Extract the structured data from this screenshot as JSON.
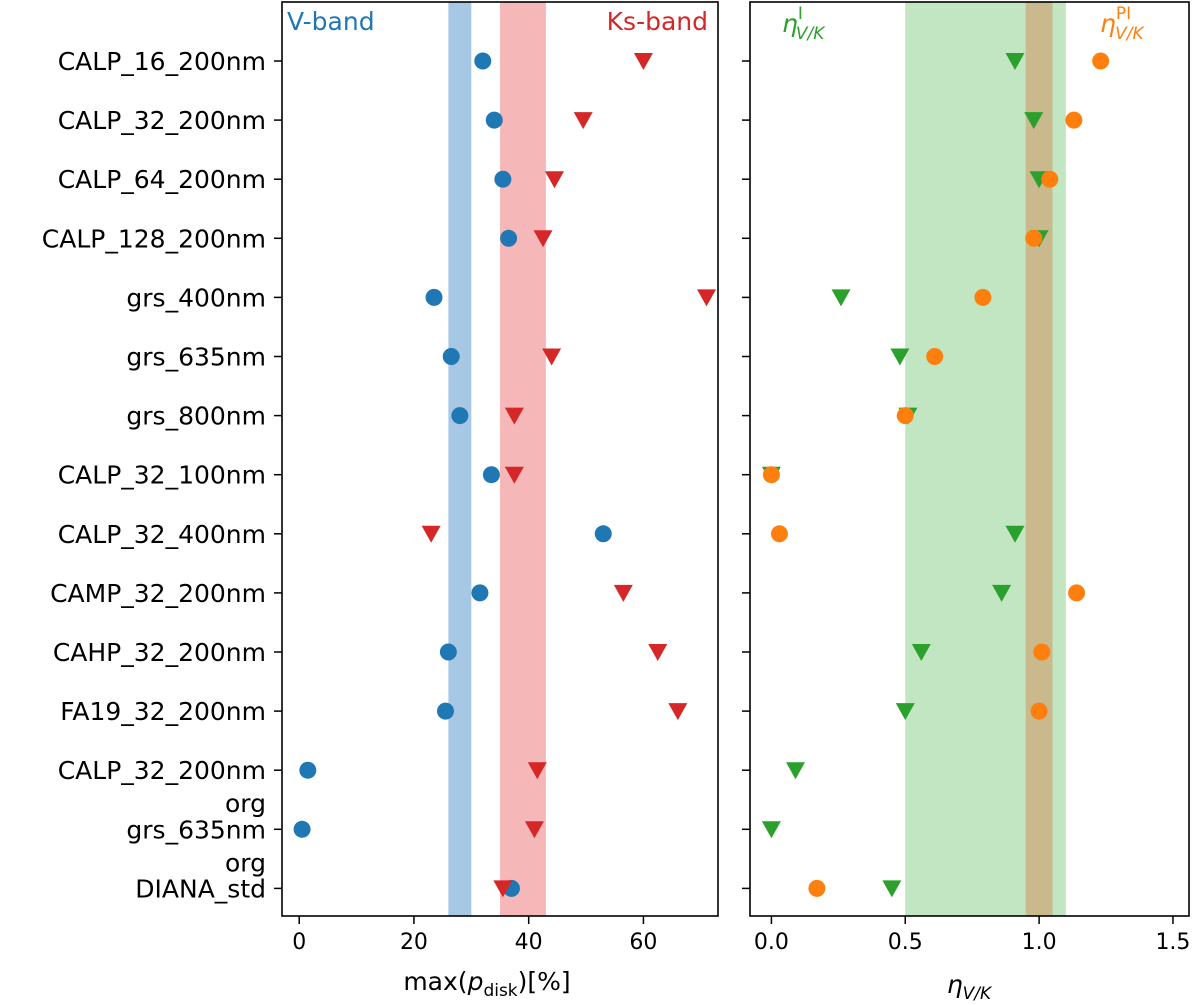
{
  "chart_data": [
    {
      "type": "scatter",
      "orientation": "horizontal-categories",
      "categories": [
        [
          "CALP_16_200nm"
        ],
        [
          "CALP_32_200nm"
        ],
        [
          "CALP_64_200nm"
        ],
        [
          "CALP_128_200nm"
        ],
        [
          "grs_400nm"
        ],
        [
          "grs_635nm"
        ],
        [
          "grs_800nm"
        ],
        [
          "CALP_32_100nm"
        ],
        [
          "CALP_32_400nm"
        ],
        [
          "CAMP_32_200nm"
        ],
        [
          "CAHP_32_200nm"
        ],
        [
          "FA19_32_200nm"
        ],
        [
          "CALP_32_200nm",
          "org"
        ],
        [
          "grs_635nm",
          "org"
        ],
        [
          "DIANA_std"
        ]
      ],
      "xlabel": "max(p_disk)[%]",
      "xlim": [
        -3,
        73
      ],
      "xticks": [
        0,
        20,
        40,
        60
      ],
      "tick_labels": [
        "0",
        "20",
        "40",
        "60"
      ],
      "bands": [
        {
          "label": "V-band",
          "range": [
            26,
            30
          ],
          "color": "#a6c8e4"
        },
        {
          "label": "Ks-band",
          "range": [
            35,
            43
          ],
          "color": "#f5b7b8"
        }
      ],
      "series": [
        {
          "name": "V-band",
          "marker": "circle",
          "color": "#1f77b4",
          "values": [
            32,
            34,
            35.5,
            36.5,
            23.5,
            26.5,
            28,
            33.5,
            53,
            31.5,
            26,
            25.5,
            1.5,
            0.5,
            37
          ]
        },
        {
          "name": "Ks-band",
          "marker": "triangle-down",
          "color": "#d62728",
          "values": [
            60,
            49.5,
            44.5,
            42.5,
            71,
            44,
            37.5,
            37.5,
            23,
            56.5,
            62.5,
            66,
            41.5,
            41,
            35.5
          ]
        }
      ]
    },
    {
      "type": "scatter",
      "orientation": "horizontal-categories",
      "xlabel": "η_V/K",
      "xlim": [
        -0.08,
        1.56
      ],
      "xticks": [
        0.0,
        0.5,
        1.0,
        1.5
      ],
      "tick_labels": [
        "0.0",
        "0.5",
        "1.0",
        "1.5"
      ],
      "bands": [
        {
          "range": [
            0.5,
            1.1
          ],
          "color": "#c1e6c1"
        },
        {
          "range": [
            0.95,
            1.05
          ],
          "color": "#c9b98c"
        }
      ],
      "series": [
        {
          "name_main": "η",
          "name_sup": "I",
          "name_sub": "V/K",
          "marker": "triangle-down",
          "color": "#2ca02c",
          "values": [
            0.91,
            0.98,
            1.0,
            1.0,
            0.26,
            0.48,
            0.51,
            0.0,
            0.91,
            0.86,
            0.56,
            0.5,
            0.09,
            0.0,
            0.45
          ]
        },
        {
          "name_main": "η",
          "name_sup": "PI",
          "name_sub": "V/K",
          "marker": "circle",
          "color": "#ff7f0e",
          "values": [
            1.23,
            1.13,
            1.04,
            0.98,
            0.79,
            0.61,
            0.5,
            0.0,
            0.03,
            1.14,
            1.01,
            1.0,
            null,
            null,
            0.17
          ]
        }
      ]
    }
  ]
}
